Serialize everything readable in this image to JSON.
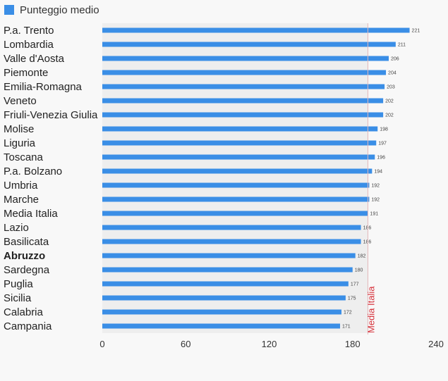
{
  "chart_data": {
    "type": "bar",
    "orientation": "horizontal",
    "categories": [
      "P.a. Trento",
      "Lombardia",
      "Valle d'Aosta",
      "Piemonte",
      "Emilia-Romagna",
      "Veneto",
      "Friuli-Venezia Giulia",
      "Molise",
      "Liguria",
      "Toscana",
      "P.a. Bolzano",
      "Umbria",
      "Marche",
      "Media Italia",
      "Lazio",
      "Basilicata",
      "Abruzzo",
      "Sardegna",
      "Puglia",
      "Sicilia",
      "Calabria",
      "Campania"
    ],
    "highlight_category": "Abruzzo",
    "series": [
      {
        "name": "Punteggio medio",
        "values": [
          221,
          211,
          206,
          204,
          203,
          202,
          202,
          198,
          197,
          196,
          194,
          192,
          192,
          191,
          186,
          186,
          182,
          180,
          177,
          175,
          172,
          171
        ]
      }
    ],
    "xlim": [
      0,
      240
    ],
    "xticks": [
      "0",
      "60",
      "120",
      "180",
      "240"
    ],
    "reference_line": {
      "value": 191,
      "label": "Media Italia"
    },
    "legend": "top-left",
    "grid": false,
    "colors": {
      "bar": "#3a8ee6",
      "reference": "#d6313a",
      "plot_bg": "#eeeeee",
      "page_bg": "#f8f8f8"
    }
  }
}
